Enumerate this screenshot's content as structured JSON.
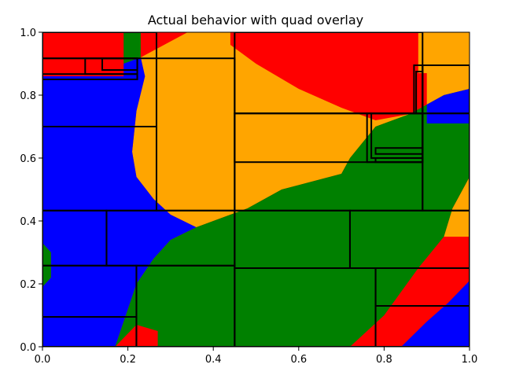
{
  "chart_data": {
    "type": "heatmap",
    "title": "Actual behavior with quad overlay",
    "xlabel": "",
    "ylabel": "",
    "xlim": [
      0.0,
      1.0
    ],
    "ylim": [
      0.0,
      1.0
    ],
    "xticks": [
      "0.0",
      "0.2",
      "0.4",
      "0.6",
      "0.8",
      "1.0"
    ],
    "yticks": [
      "0.0",
      "0.2",
      "0.4",
      "0.6",
      "0.8",
      "1.0"
    ],
    "grid": false,
    "colors": {
      "red": "#ff0000",
      "orange": "#ffa500",
      "green": "#008000",
      "blue": "#0000ff"
    },
    "regions": [
      {
        "color": "red",
        "points": [
          [
            0,
            1
          ],
          [
            0.19,
            1
          ],
          [
            0.19,
            0.86
          ],
          [
            0,
            0.86
          ]
        ]
      },
      {
        "color": "red",
        "points": [
          [
            0.44,
            1
          ],
          [
            0.87,
            1
          ],
          [
            0.87,
            0.74
          ],
          [
            0.78,
            0.72
          ],
          [
            0.7,
            0.76
          ],
          [
            0.6,
            0.82
          ],
          [
            0.5,
            0.9
          ],
          [
            0.44,
            0.96
          ]
        ]
      },
      {
        "color": "red",
        "points": [
          [
            0.88,
            1
          ],
          [
            0.9,
            1
          ],
          [
            0.9,
            0.87
          ],
          [
            0.88,
            0.87
          ]
        ]
      },
      {
        "color": "red",
        "points": [
          [
            1,
            0.4
          ],
          [
            1,
            0.21
          ],
          [
            0.9,
            0.08
          ],
          [
            0.84,
            0
          ],
          [
            0.72,
            0
          ],
          [
            0.8,
            0.1
          ],
          [
            0.88,
            0.23
          ],
          [
            0.95,
            0.33
          ]
        ]
      },
      {
        "color": "red",
        "points": [
          [
            0.17,
            0
          ],
          [
            0.27,
            0
          ],
          [
            0.27,
            0.05
          ],
          [
            0.22,
            0.07
          ]
        ]
      },
      {
        "color": "orange",
        "points": [
          [
            0.88,
            1
          ],
          [
            1,
            1
          ],
          [
            1,
            0.82
          ],
          [
            0.94,
            0.8
          ],
          [
            0.9,
            0.77
          ],
          [
            0.9,
            0.87
          ],
          [
            0.88,
            0.87
          ]
        ]
      },
      {
        "color": "orange",
        "points": [
          [
            0.23,
            0.92
          ],
          [
            0.34,
            1
          ],
          [
            0.44,
            1
          ],
          [
            0.44,
            0.96
          ],
          [
            0.5,
            0.9
          ],
          [
            0.6,
            0.82
          ],
          [
            0.7,
            0.76
          ],
          [
            0.78,
            0.72
          ],
          [
            0.86,
            0.74
          ],
          [
            0.78,
            0.7
          ],
          [
            0.72,
            0.6
          ],
          [
            0.7,
            0.55
          ],
          [
            0.56,
            0.5
          ],
          [
            0.48,
            0.44
          ],
          [
            0.4,
            0.4
          ],
          [
            0.36,
            0.38
          ],
          [
            0.3,
            0.42
          ],
          [
            0.26,
            0.47
          ],
          [
            0.22,
            0.54
          ],
          [
            0.21,
            0.62
          ],
          [
            0.22,
            0.75
          ],
          [
            0.24,
            0.86
          ]
        ]
      },
      {
        "color": "orange",
        "points": [
          [
            1,
            0.54
          ],
          [
            1,
            0.35
          ],
          [
            0.94,
            0.35
          ],
          [
            0.96,
            0.44
          ]
        ]
      },
      {
        "color": "green",
        "points": [
          [
            0.19,
            1
          ],
          [
            0.23,
            1
          ],
          [
            0.23,
            0.92
          ],
          [
            0.19,
            0.9
          ]
        ]
      },
      {
        "color": "green",
        "points": [
          [
            0.78,
            0.7
          ],
          [
            0.86,
            0.74
          ],
          [
            0.9,
            0.77
          ],
          [
            0.94,
            0.8
          ],
          [
            1,
            0.82
          ],
          [
            1,
            0.54
          ],
          [
            0.96,
            0.44
          ],
          [
            0.94,
            0.35
          ],
          [
            0.88,
            0.25
          ],
          [
            0.8,
            0.1
          ],
          [
            0.72,
            0
          ],
          [
            0.27,
            0
          ],
          [
            0.27,
            0.05
          ],
          [
            0.22,
            0.07
          ],
          [
            0.17,
            0
          ],
          [
            0.22,
            0.2
          ],
          [
            0.26,
            0.28
          ],
          [
            0.3,
            0.34
          ],
          [
            0.36,
            0.38
          ],
          [
            0.4,
            0.4
          ],
          [
            0.48,
            0.44
          ],
          [
            0.56,
            0.5
          ],
          [
            0.7,
            0.55
          ],
          [
            0.72,
            0.6
          ]
        ]
      },
      {
        "color": "green",
        "points": [
          [
            0,
            0.33
          ],
          [
            0.02,
            0.3
          ],
          [
            0.02,
            0.22
          ],
          [
            0,
            0.19
          ]
        ]
      },
      {
        "color": "blue",
        "points": [
          [
            0,
            0.86
          ],
          [
            0.19,
            0.86
          ],
          [
            0.19,
            0.9
          ],
          [
            0.23,
            0.92
          ],
          [
            0.24,
            0.86
          ],
          [
            0.22,
            0.75
          ],
          [
            0.21,
            0.62
          ],
          [
            0.22,
            0.54
          ],
          [
            0.26,
            0.47
          ],
          [
            0.3,
            0.42
          ],
          [
            0.36,
            0.38
          ],
          [
            0.3,
            0.34
          ],
          [
            0.26,
            0.28
          ],
          [
            0.22,
            0.2
          ],
          [
            0.17,
            0
          ],
          [
            0,
            0
          ],
          [
            0,
            0.19
          ],
          [
            0.02,
            0.22
          ],
          [
            0.02,
            0.3
          ],
          [
            0,
            0.33
          ]
        ]
      },
      {
        "color": "blue",
        "points": [
          [
            0.9,
            0.77
          ],
          [
            0.94,
            0.8
          ],
          [
            1,
            0.82
          ],
          [
            1,
            0.71
          ],
          [
            0.9,
            0.71
          ]
        ]
      },
      {
        "color": "blue",
        "points": [
          [
            0.84,
            0
          ],
          [
            1,
            0
          ],
          [
            1,
            0.21
          ],
          [
            0.95,
            0.14
          ],
          [
            0.9,
            0.08
          ]
        ]
      }
    ],
    "quads": [
      [
        0.0,
        0.433,
        0.267,
        1.0
      ],
      [
        0.267,
        0.433,
        0.45,
        0.917
      ],
      [
        0.45,
        0.433,
        0.89,
        0.742
      ],
      [
        0.89,
        0.433,
        1.0,
        0.742
      ],
      [
        0.0,
        0.258,
        0.15,
        0.433
      ],
      [
        0.15,
        0.258,
        0.45,
        0.433
      ],
      [
        0.45,
        0.25,
        0.72,
        0.433
      ],
      [
        0.72,
        0.25,
        1.0,
        0.433
      ],
      [
        0.0,
        0.0,
        0.22,
        0.258
      ],
      [
        0.22,
        0.0,
        0.45,
        0.258
      ],
      [
        0.45,
        0.0,
        0.78,
        0.25
      ],
      [
        0.78,
        0.0,
        1.0,
        0.25
      ],
      [
        0.0,
        0.7,
        0.267,
        0.917
      ],
      [
        0.0,
        0.85,
        0.222,
        0.917
      ],
      [
        0.1,
        0.867,
        0.222,
        0.917
      ],
      [
        0.14,
        0.88,
        0.222,
        0.917
      ],
      [
        0.0,
        0.85,
        0.222,
        0.867
      ],
      [
        0.45,
        0.742,
        0.89,
        1.0
      ],
      [
        0.89,
        0.742,
        1.0,
        0.895
      ],
      [
        0.45,
        0.587,
        0.89,
        0.742
      ],
      [
        0.76,
        0.587,
        0.89,
        0.742
      ],
      [
        0.77,
        0.6,
        0.89,
        0.742
      ],
      [
        0.78,
        0.613,
        0.89,
        0.632
      ],
      [
        0.78,
        0.587,
        0.89,
        0.6
      ],
      [
        0.87,
        0.742,
        0.89,
        0.895
      ],
      [
        0.875,
        0.742,
        0.89,
        0.875
      ],
      [
        0.0,
        0.0,
        0.22,
        0.095
      ],
      [
        0.78,
        0.13,
        1.0,
        0.25
      ]
    ]
  }
}
